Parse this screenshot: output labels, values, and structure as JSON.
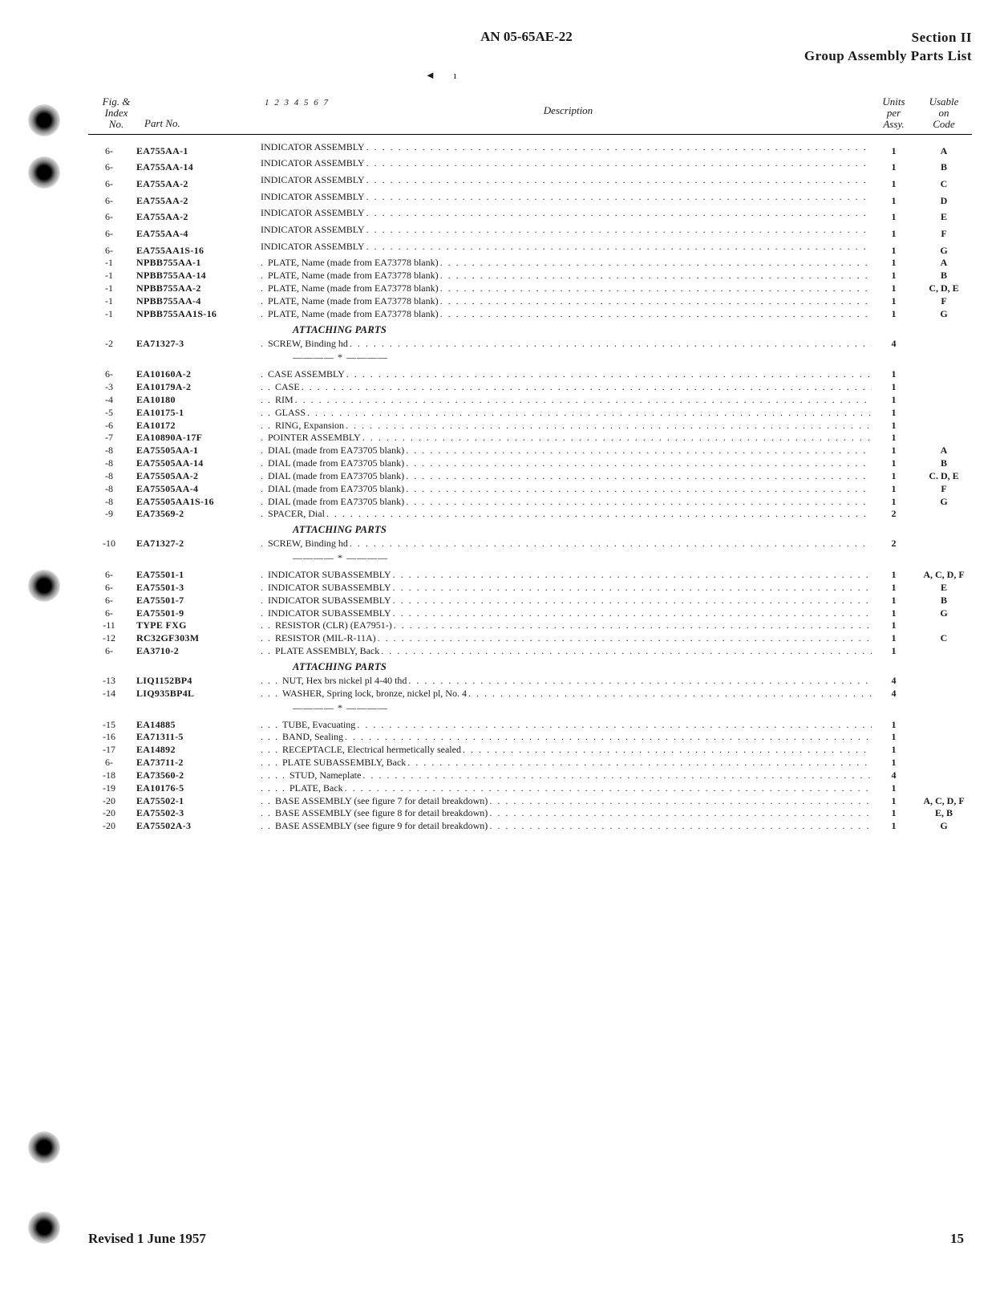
{
  "header": {
    "doc_no": "AN 05-65AE-22",
    "section_line1": "Section II",
    "section_line2": "Group Assembly Parts List"
  },
  "col_headers": {
    "fig": "Fig. &\nIndex\nNo.",
    "part": "Part No.",
    "indent_nums": "1  2  3  4  5  6  7",
    "desc": "Description",
    "units": "Units\nper\nAssy.",
    "usable": "Usable\non\nCode"
  },
  "attaching_label": "ATTACHING PARTS",
  "sep": "———— * ————",
  "rows": [
    {
      "fig": "6-",
      "part": "EA755AA-1",
      "indent": 0,
      "desc": "INDICATOR ASSEMBLY",
      "units": "1",
      "usable": "A"
    },
    {
      "fig": "6-",
      "part": "EA755AA-14",
      "indent": 0,
      "desc": "INDICATOR ASSEMBLY",
      "units": "1",
      "usable": "B"
    },
    {
      "fig": "6-",
      "part": "EA755AA-2",
      "indent": 0,
      "desc": "INDICATOR ASSEMBLY",
      "units": "1",
      "usable": "C"
    },
    {
      "fig": "6-",
      "part": "EA755AA-2",
      "indent": 0,
      "desc": "INDICATOR ASSEMBLY",
      "units": "1",
      "usable": "D"
    },
    {
      "fig": "6-",
      "part": "EA755AA-2",
      "indent": 0,
      "desc": "INDICATOR ASSEMBLY",
      "units": "1",
      "usable": "E"
    },
    {
      "fig": "6-",
      "part": "EA755AA-4",
      "indent": 0,
      "desc": "INDICATOR ASSEMBLY",
      "units": "1",
      "usable": "F"
    },
    {
      "fig": "6-",
      "part": "EA755AA1S-16",
      "indent": 0,
      "desc": "INDICATOR ASSEMBLY",
      "units": "1",
      "usable": "G"
    },
    {
      "fig": "-1",
      "part": "NPBB755AA-1",
      "indent": 1,
      "desc": "PLATE, Name (made from EA73778 blank)",
      "units": "1",
      "usable": "A"
    },
    {
      "fig": "-1",
      "part": "NPBB755AA-14",
      "indent": 1,
      "desc": "PLATE, Name (made from EA73778 blank)",
      "units": "1",
      "usable": "B"
    },
    {
      "fig": "-1",
      "part": "NPBB755AA-2",
      "indent": 1,
      "desc": "PLATE, Name (made from EA73778 blank)",
      "units": "1",
      "usable": "C, D, E"
    },
    {
      "fig": "-1",
      "part": "NPBB755AA-4",
      "indent": 1,
      "desc": "PLATE, Name (made from EA73778 blank)",
      "units": "1",
      "usable": "F"
    },
    {
      "fig": "-1",
      "part": "NPBB755AA1S-16",
      "indent": 1,
      "desc": "PLATE, Name (made from EA73778 blank)",
      "units": "1",
      "usable": "G"
    }
  ],
  "rows2": [
    {
      "fig": "-2",
      "part": "EA71327-3",
      "indent": 1,
      "desc": "SCREW, Binding hd",
      "units": "4",
      "usable": ""
    }
  ],
  "rows3": [
    {
      "fig": "6-",
      "part": "EA10160A-2",
      "indent": 1,
      "desc": "CASE ASSEMBLY",
      "units": "1",
      "usable": ""
    },
    {
      "fig": "-3",
      "part": "EA10179A-2",
      "indent": 2,
      "desc": "CASE",
      "units": "1",
      "usable": ""
    },
    {
      "fig": "-4",
      "part": "EA10180",
      "indent": 2,
      "desc": "RIM",
      "units": "1",
      "usable": ""
    },
    {
      "fig": "-5",
      "part": "EA10175-1",
      "indent": 2,
      "desc": "GLASS",
      "units": "1",
      "usable": ""
    },
    {
      "fig": "-6",
      "part": "EA10172",
      "indent": 2,
      "desc": "RING, Expansion",
      "units": "1",
      "usable": ""
    },
    {
      "fig": "-7",
      "part": "EA10890A-17F",
      "indent": 1,
      "desc": "POINTER ASSEMBLY",
      "units": "1",
      "usable": ""
    },
    {
      "fig": "-8",
      "part": "EA75505AA-1",
      "indent": 1,
      "desc": "DIAL (made from EA73705 blank)",
      "units": "1",
      "usable": "A"
    },
    {
      "fig": "-8",
      "part": "EA75505AA-14",
      "indent": 1,
      "desc": "DIAL (made from EA73705 blank)",
      "units": "1",
      "usable": "B"
    },
    {
      "fig": "-8",
      "part": "EA75505AA-2",
      "indent": 1,
      "desc": "DIAL (made from EA73705 blank)",
      "units": "1",
      "usable": "C. D, E"
    },
    {
      "fig": "-8",
      "part": "EA75505AA-4",
      "indent": 1,
      "desc": "DIAL (made from EA73705 blank)",
      "units": "1",
      "usable": "F"
    },
    {
      "fig": "-8",
      "part": "EA75505AA1S-16",
      "indent": 1,
      "desc": "DIAL (made from EA73705 blank)",
      "units": "1",
      "usable": "G"
    },
    {
      "fig": "-9",
      "part": "EA73569-2",
      "indent": 1,
      "desc": "SPACER, Dial",
      "units": "2",
      "usable": ""
    }
  ],
  "rows4": [
    {
      "fig": "-10",
      "part": "EA71327-2",
      "indent": 1,
      "desc": "SCREW, Binding hd",
      "units": "2",
      "usable": ""
    }
  ],
  "rows5": [
    {
      "fig": "6-",
      "part": "EA75501-1",
      "indent": 1,
      "desc": "INDICATOR SUBASSEMBLY",
      "units": "1",
      "usable": "A, C, D, F"
    },
    {
      "fig": "6-",
      "part": "EA75501-3",
      "indent": 1,
      "desc": "INDICATOR SUBASSEMBLY",
      "units": "1",
      "usable": "E"
    },
    {
      "fig": "6-",
      "part": "EA75501-7",
      "indent": 1,
      "desc": "INDICATOR SUBASSEMBLY",
      "units": "1",
      "usable": "B"
    },
    {
      "fig": "6-",
      "part": "EA75501-9",
      "indent": 1,
      "desc": "INDICATOR SUBASSEMBLY",
      "units": "1",
      "usable": "G"
    },
    {
      "fig": "-11",
      "part": "TYPE FXG",
      "indent": 2,
      "desc": "RESISTOR (CLR) (EA7951-)",
      "units": "1",
      "usable": ""
    },
    {
      "fig": "-12",
      "part": "RC32GF303M",
      "indent": 2,
      "desc": "RESISTOR (MIL-R-11A)",
      "units": "1",
      "usable": "C"
    },
    {
      "fig": "6-",
      "part": "EA3710-2",
      "indent": 2,
      "desc": "PLATE ASSEMBLY, Back",
      "units": "1",
      "usable": ""
    }
  ],
  "rows6": [
    {
      "fig": "-13",
      "part": "LIQ1152BP4",
      "indent": 3,
      "desc": "NUT, Hex brs nickel pl 4-40 thd",
      "units": "4",
      "usable": ""
    },
    {
      "fig": "-14",
      "part": "LIQ935BP4L",
      "indent": 3,
      "desc": "WASHER, Spring lock, bronze, nickel pl, No. 4",
      "units": "4",
      "usable": ""
    }
  ],
  "rows7": [
    {
      "fig": "-15",
      "part": "EA14885",
      "indent": 3,
      "desc": "TUBE, Evacuating",
      "units": "1",
      "usable": ""
    },
    {
      "fig": "-16",
      "part": "EA71311-5",
      "indent": 3,
      "desc": "BAND, Sealing",
      "units": "1",
      "usable": ""
    },
    {
      "fig": "-17",
      "part": "EA14892",
      "indent": 3,
      "desc": "RECEPTACLE, Electrical hermetically sealed",
      "units": "1",
      "usable": ""
    },
    {
      "fig": "6-",
      "part": "EA73711-2",
      "indent": 3,
      "desc": "PLATE SUBASSEMBLY, Back",
      "units": "1",
      "usable": ""
    },
    {
      "fig": "-18",
      "part": "EA73560-2",
      "indent": 4,
      "desc": "STUD, Nameplate",
      "units": "4",
      "usable": ""
    },
    {
      "fig": "-19",
      "part": "EA10176-5",
      "indent": 4,
      "desc": "PLATE, Back",
      "units": "1",
      "usable": ""
    },
    {
      "fig": "-20",
      "part": "EA75502-1",
      "indent": 2,
      "desc": "BASE ASSEMBLY (see figure 7 for detail breakdown)",
      "units": "1",
      "usable": "A, C, D, F"
    },
    {
      "fig": "-20",
      "part": "EA75502-3",
      "indent": 2,
      "desc": "BASE ASSEMBLY (see figure 8 for detail breakdown)",
      "units": "1",
      "usable": "E, B"
    },
    {
      "fig": "-20",
      "part": "EA75502A-3",
      "indent": 2,
      "desc": "BASE ASSEMBLY (see figure 9 for detail breakdown)",
      "units": "1",
      "usable": "G"
    }
  ],
  "footer": {
    "revised": "Revised 1 June 1957",
    "page": "15"
  }
}
